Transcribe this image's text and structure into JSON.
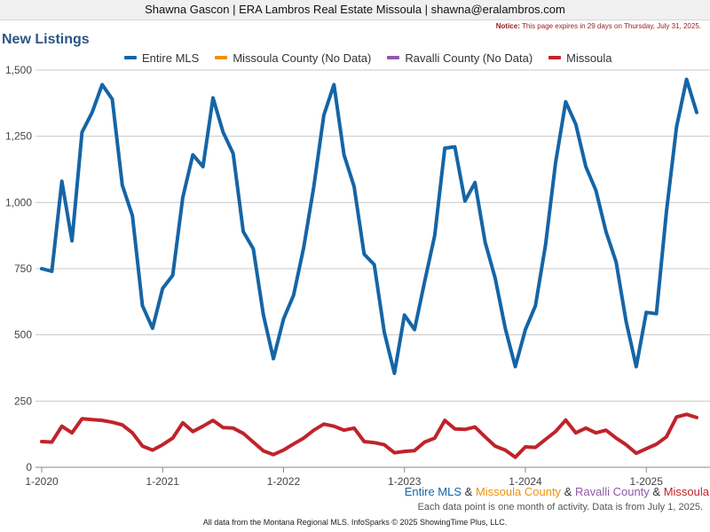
{
  "header": {
    "agent_line": "Shawna Gascon | ERA Lambros Real Estate Missoula | shawna@eralambros.com",
    "notice_label": "Notice:",
    "notice_text": "This page expires in 29 days on Thursday, July 31, 2025."
  },
  "footer": {
    "series_names": [
      "Entire MLS",
      "Missoula County",
      "Ravalli County",
      "Missoula"
    ],
    "series_joiner": " & ",
    "note": "Each data point is one month of activity. Data is from July 1, 2025.",
    "source": "All data from the Montana Regional MLS. InfoSparks © 2025 ShowingTime Plus, LLC."
  },
  "colors": {
    "title": "#2a5783",
    "entire_mls": "#1565a6",
    "missoula_county": "#f0900c",
    "ravalli_county": "#8e59a8",
    "missoula": "#c0232a",
    "grid": "#c8c8c8"
  },
  "chart_data": {
    "type": "line",
    "title": "New Listings",
    "xlabel": "",
    "ylabel": "",
    "ylim": [
      0,
      1500
    ],
    "yticks": [
      0,
      250,
      500,
      750,
      1000,
      1250,
      1500
    ],
    "ytick_labels": [
      "0",
      "250",
      "500",
      "750",
      "1,000",
      "1,250",
      "1,500"
    ],
    "xticks": [
      {
        "label": "1-2020",
        "index": 0
      },
      {
        "label": "1-2021",
        "index": 12
      },
      {
        "label": "1-2022",
        "index": 24
      },
      {
        "label": "1-2023",
        "index": 36
      },
      {
        "label": "1-2024",
        "index": 48
      },
      {
        "label": "1-2025",
        "index": 60
      }
    ],
    "legend_position": "top",
    "grid": true,
    "x_start": "2020-01",
    "x_interval": "month",
    "series": [
      {
        "name": "Entire MLS",
        "color_key": "entire_mls",
        "values": [
          750,
          740,
          1080,
          855,
          1265,
          1340,
          1445,
          1390,
          1065,
          950,
          610,
          525,
          675,
          725,
          1020,
          1180,
          1135,
          1395,
          1265,
          1185,
          890,
          825,
          575,
          410,
          560,
          650,
          830,
          1060,
          1330,
          1445,
          1180,
          1060,
          805,
          765,
          510,
          355,
          575,
          520,
          700,
          875,
          1205,
          1210,
          1005,
          1075,
          850,
          715,
          525,
          380,
          520,
          610,
          840,
          1150,
          1380,
          1295,
          1135,
          1045,
          890,
          775,
          550,
          380,
          585,
          580,
          965,
          1285,
          1465,
          1340
        ]
      },
      {
        "name": "Missoula County (No Data)",
        "color_key": "missoula_county",
        "values": []
      },
      {
        "name": "Ravalli County (No Data)",
        "color_key": "ravalli_county",
        "values": []
      },
      {
        "name": "Missoula",
        "color_key": "missoula",
        "values": [
          97,
          95,
          155,
          130,
          183,
          180,
          177,
          170,
          160,
          130,
          80,
          65,
          85,
          110,
          168,
          135,
          155,
          177,
          150,
          148,
          128,
          95,
          62,
          48,
          65,
          88,
          110,
          140,
          163,
          155,
          140,
          148,
          97,
          93,
          85,
          55,
          60,
          63,
          95,
          110,
          177,
          145,
          143,
          152,
          115,
          80,
          65,
          38,
          77,
          75,
          105,
          135,
          178,
          130,
          148,
          130,
          140,
          110,
          85,
          53,
          70,
          87,
          115,
          190,
          200,
          188
        ]
      }
    ]
  }
}
